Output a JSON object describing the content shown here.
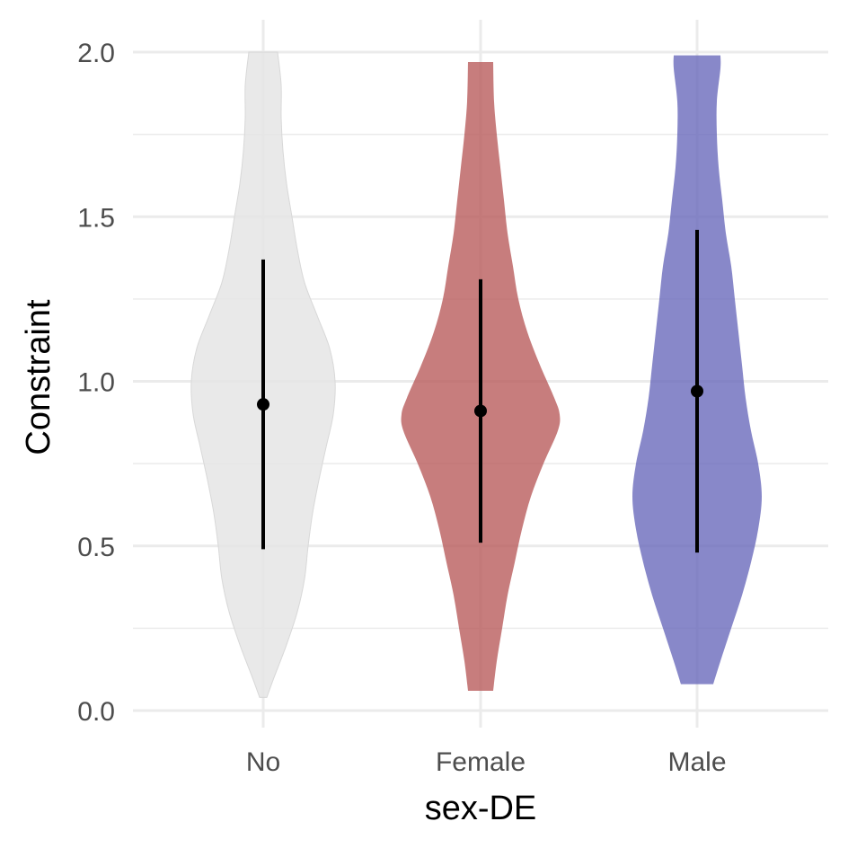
{
  "chart_data": {
    "type": "violin",
    "xlabel": "sex-DE",
    "ylabel": "Constraint",
    "ylim": [
      0,
      2.0
    ],
    "yticks": [
      "0.0",
      "0.5",
      "1.0",
      "1.5",
      "2.0"
    ],
    "categories": [
      "No",
      "Female",
      "Male"
    ],
    "colors": {
      "No": "#e5e5e5",
      "Female": "#b95c5c",
      "Male": "#6a6abc"
    },
    "grid": true,
    "legend": "none",
    "summary": [
      {
        "category": "No",
        "point": 0.93,
        "lower": 0.49,
        "upper": 1.37
      },
      {
        "category": "Female",
        "point": 0.91,
        "lower": 0.51,
        "upper": 1.31
      },
      {
        "category": "Male",
        "point": 0.97,
        "lower": 0.48,
        "upper": 1.46
      }
    ],
    "violins": [
      {
        "category": "No",
        "min": 0.04,
        "max": 2.0,
        "profile": [
          [
            0.04,
            0.04
          ],
          [
            0.1,
            0.12
          ],
          [
            0.2,
            0.26
          ],
          [
            0.3,
            0.38
          ],
          [
            0.4,
            0.46
          ],
          [
            0.5,
            0.5
          ],
          [
            0.6,
            0.55
          ],
          [
            0.7,
            0.62
          ],
          [
            0.8,
            0.7
          ],
          [
            0.9,
            0.78
          ],
          [
            1.0,
            0.8
          ],
          [
            1.1,
            0.74
          ],
          [
            1.2,
            0.6
          ],
          [
            1.3,
            0.46
          ],
          [
            1.4,
            0.38
          ],
          [
            1.5,
            0.32
          ],
          [
            1.6,
            0.26
          ],
          [
            1.7,
            0.22
          ],
          [
            1.8,
            0.2
          ],
          [
            1.9,
            0.2
          ],
          [
            2.0,
            0.16
          ]
        ]
      },
      {
        "category": "Female",
        "min": 0.06,
        "max": 1.97,
        "profile": [
          [
            0.06,
            0.14
          ],
          [
            0.15,
            0.18
          ],
          [
            0.25,
            0.24
          ],
          [
            0.35,
            0.3
          ],
          [
            0.45,
            0.38
          ],
          [
            0.55,
            0.46
          ],
          [
            0.65,
            0.56
          ],
          [
            0.75,
            0.7
          ],
          [
            0.85,
            0.86
          ],
          [
            0.9,
            0.88
          ],
          [
            0.95,
            0.82
          ],
          [
            1.05,
            0.66
          ],
          [
            1.15,
            0.52
          ],
          [
            1.25,
            0.42
          ],
          [
            1.35,
            0.36
          ],
          [
            1.45,
            0.3
          ],
          [
            1.55,
            0.26
          ],
          [
            1.65,
            0.22
          ],
          [
            1.75,
            0.18
          ],
          [
            1.85,
            0.15
          ],
          [
            1.97,
            0.14
          ]
        ]
      },
      {
        "category": "Male",
        "min": 0.08,
        "max": 1.99,
        "profile": [
          [
            0.08,
            0.18
          ],
          [
            0.15,
            0.26
          ],
          [
            0.25,
            0.38
          ],
          [
            0.35,
            0.5
          ],
          [
            0.45,
            0.6
          ],
          [
            0.55,
            0.68
          ],
          [
            0.65,
            0.72
          ],
          [
            0.75,
            0.68
          ],
          [
            0.85,
            0.6
          ],
          [
            0.95,
            0.54
          ],
          [
            1.05,
            0.5
          ],
          [
            1.15,
            0.46
          ],
          [
            1.25,
            0.42
          ],
          [
            1.35,
            0.38
          ],
          [
            1.45,
            0.32
          ],
          [
            1.55,
            0.28
          ],
          [
            1.65,
            0.24
          ],
          [
            1.75,
            0.22
          ],
          [
            1.85,
            0.22
          ],
          [
            1.95,
            0.26
          ],
          [
            1.99,
            0.26
          ]
        ]
      }
    ]
  }
}
